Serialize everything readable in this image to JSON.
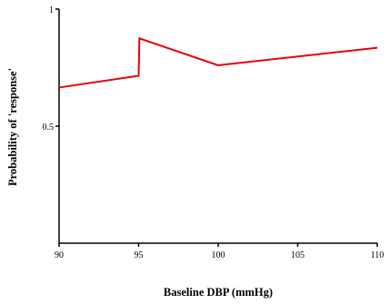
{
  "chart_data": {
    "type": "line",
    "title": "",
    "xlabel": "Baseline DBP (mmHg)",
    "ylabel": "Probability of 'response'",
    "xlim": [
      90,
      110
    ],
    "ylim": [
      0,
      1
    ],
    "x_ticks": [
      90,
      95,
      100,
      105,
      110
    ],
    "x_tick_labels": [
      "90",
      "95",
      "100",
      "105",
      "110"
    ],
    "y_ticks": [
      0.5,
      1
    ],
    "y_tick_labels": [
      "0.5",
      "1"
    ],
    "grid": false,
    "legend": "none",
    "series": [
      {
        "color": "#e8000b",
        "x": [
          90,
          95,
          95.05,
          100,
          110
        ],
        "y": [
          0.665,
          0.715,
          0.875,
          0.76,
          0.835
        ]
      }
    ]
  }
}
